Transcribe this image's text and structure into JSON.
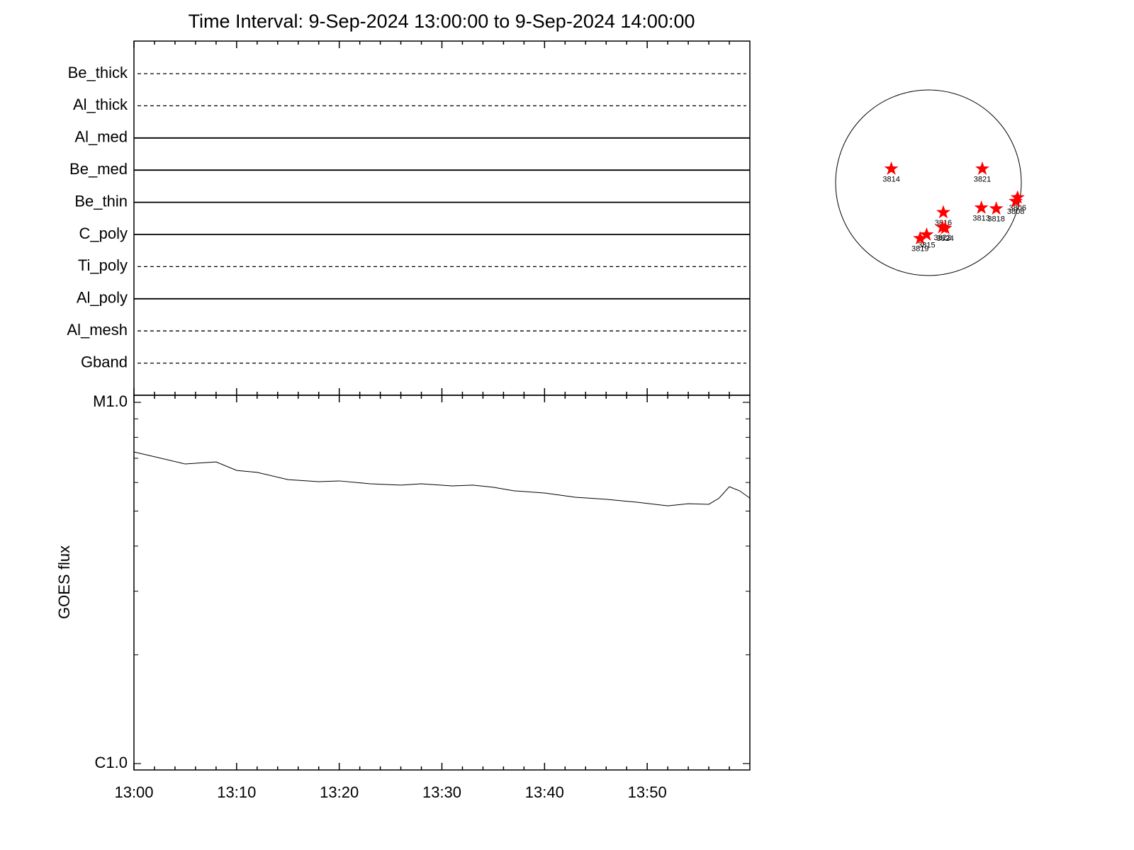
{
  "chart_data": [
    {
      "type": "filter-timeline",
      "title": "Time Interval:  9-Sep-2024 13:00:00 to  9-Sep-2024 14:00:00",
      "categories": [
        "Be_thick",
        "Al_thick",
        "Al_med",
        "Be_med",
        "Be_thin",
        "C_poly",
        "Ti_poly",
        "Al_poly",
        "Al_mesh",
        "Gband"
      ],
      "line_styles": [
        "dashed",
        "dashed",
        "solid",
        "solid",
        "solid",
        "solid",
        "dashed",
        "solid",
        "dashed",
        "dashed"
      ],
      "color": "#000000"
    },
    {
      "type": "line",
      "y_label": "GOES flux",
      "log_scale": true,
      "color": "#000000",
      "x": [
        "13:00",
        "13:05",
        "13:08",
        "13:10",
        "13:12",
        "13:15",
        "13:18",
        "13:20",
        "13:23",
        "13:26",
        "13:28",
        "13:31",
        "13:33",
        "13:35",
        "13:37",
        "13:40",
        "13:43",
        "13:46",
        "13:49",
        "13:52",
        "13:54",
        "13:56",
        "13:57",
        "13:58",
        "13:59",
        "14:00"
      ],
      "values": [
        7.29e-06,
        6.75e-06,
        6.84e-06,
        6.48e-06,
        6.4e-06,
        6.11e-06,
        6.03e-06,
        6.06e-06,
        5.95e-06,
        5.9e-06,
        5.95e-06,
        5.87e-06,
        5.9e-06,
        5.82e-06,
        5.69e-06,
        5.61e-06,
        5.46e-06,
        5.39e-06,
        5.29e-06,
        5.17e-06,
        5.24e-06,
        5.22e-06,
        5.43e-06,
        5.84e-06,
        5.69e-06,
        5.43e-06
      ],
      "xlim": [
        "13:00",
        "14:00"
      ],
      "xticks": [
        "13:00",
        "13:10",
        "13:20",
        "13:30",
        "13:40",
        "13:50"
      ],
      "xminor_ticks": [
        "13:02",
        "13:04",
        "13:06",
        "13:08",
        "13:12",
        "13:14",
        "13:16",
        "13:18",
        "13:22",
        "13:24",
        "13:26",
        "13:28",
        "13:32",
        "13:34",
        "13:36",
        "13:38",
        "13:42",
        "13:44",
        "13:46",
        "13:48",
        "13:52",
        "13:54",
        "13:56",
        "13:58"
      ],
      "ylim": [
        1e-06,
        1e-05
      ],
      "yticks": [
        {
          "value": 1e-06,
          "label": "C1.0"
        },
        {
          "value": 1e-05,
          "label": "M1.0"
        }
      ],
      "yminor_ticks": [
        2e-06,
        3e-06,
        4e-06,
        5e-06,
        6e-06,
        7e-06,
        8e-06,
        9e-06
      ]
    },
    {
      "type": "disk",
      "color": "#ff0000",
      "labels": [
        "3814",
        "3821",
        "3816",
        "3813",
        "3818",
        "3806",
        "3808",
        "3822",
        "3824",
        "3815",
        "3819"
      ],
      "x": [
        -0.4,
        0.58,
        0.16,
        0.57,
        0.73,
        0.96,
        0.94,
        0.15,
        0.18,
        -0.02,
        -0.09
      ],
      "y": [
        0.15,
        0.15,
        -0.32,
        -0.27,
        -0.28,
        -0.16,
        -0.2,
        -0.48,
        -0.49,
        -0.56,
        -0.6
      ],
      "xlim": [
        -1,
        1
      ],
      "ylim": [
        -1,
        1
      ]
    }
  ]
}
